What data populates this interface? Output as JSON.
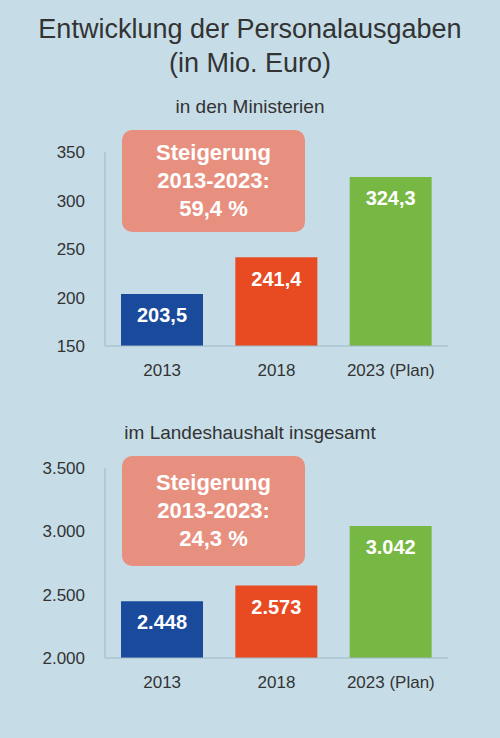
{
  "title": "Entwicklung der Personalausgaben (in Mio. Euro)",
  "chart_data": [
    {
      "type": "bar",
      "subtitle": "in den Ministerien",
      "annotation": [
        "Steigerung",
        "2013-2023:",
        "59,4 %"
      ],
      "categories": [
        "2013",
        "2018",
        "2023 (Plan)"
      ],
      "values": [
        203.5,
        241.4,
        324.3
      ],
      "value_labels": [
        "203,5",
        "241,4",
        "324,3"
      ],
      "colors": [
        "#1a4a9c",
        "#e84a22",
        "#76b843"
      ],
      "ylim": [
        150,
        350
      ],
      "yticks": [
        150,
        200,
        250,
        300,
        350
      ],
      "data_labels": true,
      "grid": false
    },
    {
      "type": "bar",
      "subtitle": "im Landeshaushalt insgesamt",
      "annotation": [
        "Steigerung",
        "2013-2023:",
        "24,3 %"
      ],
      "categories": [
        "2013",
        "2018",
        "2023 (Plan)"
      ],
      "values": [
        2448,
        2573,
        3042
      ],
      "value_labels": [
        "2.448",
        "2.573",
        "3.042"
      ],
      "colors": [
        "#1a4a9c",
        "#e84a22",
        "#76b843"
      ],
      "ylim": [
        2000,
        3500
      ],
      "yticks": [
        {
          "value": 2000,
          "label": "2.000"
        },
        {
          "value": 2500,
          "label": "2.500"
        },
        {
          "value": 3000,
          "label": "3.000"
        },
        {
          "value": 3500,
          "label": "3.500"
        }
      ],
      "data_labels": true,
      "grid": false
    }
  ]
}
